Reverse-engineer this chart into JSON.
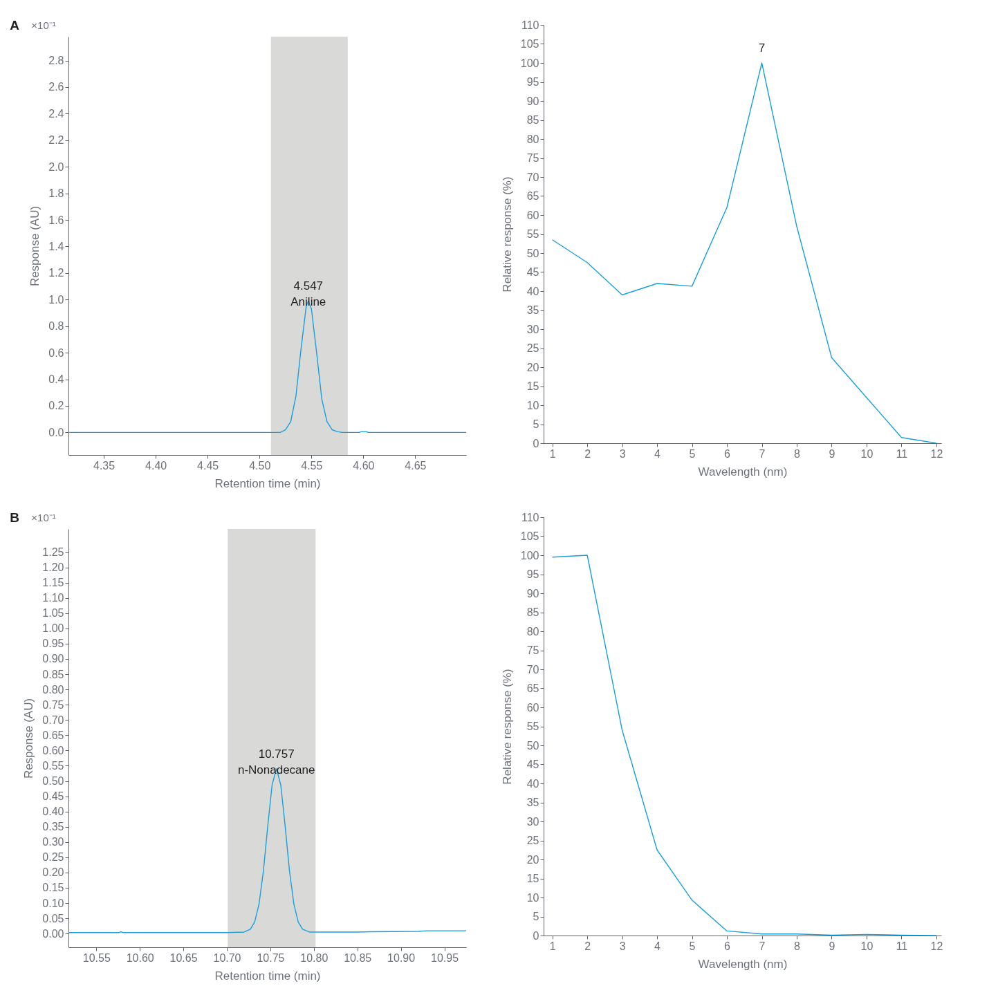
{
  "chart_data": [
    {
      "type": "line",
      "xlabel": "Retention time (min)",
      "ylabel": "Response (AU)",
      "xlim": [
        4.316,
        4.699
      ],
      "ylim": [
        -0.17,
        2.98
      ],
      "xticks": [
        4.35,
        {
          "value": 4.4,
          "label": "4.40"
        },
        4.45,
        {
          "value": 4.5,
          "label": "4.50"
        },
        4.55,
        {
          "value": 4.6,
          "label": "4.60"
        },
        4.65
      ],
      "yticks": [
        {
          "value": 0,
          "label": "0.0"
        },
        0.2,
        0.4,
        0.6,
        0.8,
        {
          "value": 1,
          "label": "1.0"
        },
        1.2,
        1.4,
        1.6,
        1.8,
        {
          "value": 2,
          "label": "2.0"
        },
        2.2,
        2.4,
        2.6,
        2.8
      ],
      "grid": false,
      "bands": [
        {
          "axis": "x",
          "from": 4.511,
          "to": 4.585,
          "color": "#d9d9d8"
        }
      ],
      "annotations": [
        "A",
        "×10⁻¹",
        {
          "text": "4.547\nAniline",
          "x": 4.547,
          "y": 0.99
        }
      ],
      "series": [
        {
          "color": "#1a9fdc",
          "x": [
            4.316,
            4.52,
            4.525,
            4.53,
            4.535,
            4.54,
            4.545,
            4.547,
            4.55,
            4.555,
            4.56,
            4.565,
            4.57,
            4.575,
            4.58,
            4.596,
            4.598,
            4.603,
            4.605,
            4.699
          ],
          "values": [
            0,
            0,
            0.02,
            0.08,
            0.27,
            0.63,
            0.95,
            0.99,
            0.93,
            0.6,
            0.25,
            0.08,
            0.02,
            0.005,
            0,
            0,
            0.005,
            0.005,
            0,
            0
          ]
        }
      ]
    },
    {
      "type": "line",
      "xlabel": "Wavelength (nm)",
      "ylabel": "Relative response (%)",
      "xlim": [
        0.75,
        12.14
      ],
      "ylim": [
        0,
        110
      ],
      "xticks": [
        1,
        2,
        3,
        4,
        5,
        6,
        7,
        8,
        9,
        10,
        11,
        12
      ],
      "yticks": [
        0,
        5,
        10,
        15,
        20,
        25,
        30,
        35,
        40,
        45,
        50,
        55,
        60,
        65,
        70,
        75,
        80,
        85,
        90,
        95,
        100,
        105,
        110
      ],
      "grid": false,
      "annotations": [
        {
          "text": "7",
          "x": 7,
          "y": 100
        }
      ],
      "series": [
        {
          "color": "#1a9fdc",
          "x": [
            1,
            2,
            3,
            4,
            5,
            6,
            7,
            8,
            9,
            10,
            11,
            12
          ],
          "values": [
            53.5,
            47.5,
            39,
            42,
            41.3,
            62,
            100,
            57,
            22.5,
            12,
            1.5,
            0
          ]
        }
      ]
    },
    {
      "type": "line",
      "xlabel": "Retention time (min)",
      "ylabel": "Response (AU)",
      "xlim": [
        10.518,
        10.975
      ],
      "ylim": [
        -0.045,
        1.326
      ],
      "xticks": [
        10.55,
        {
          "value": 10.6,
          "label": "10.60"
        },
        10.65,
        {
          "value": 10.7,
          "label": "10.70"
        },
        10.75,
        {
          "value": 10.8,
          "label": "10.80"
        },
        10.85,
        {
          "value": 10.9,
          "label": "10.90"
        },
        10.95
      ],
      "yticks": [
        {
          "value": 0,
          "label": "0.00"
        },
        0.05,
        {
          "value": 0.1,
          "label": "0.10"
        },
        0.15,
        {
          "value": 0.2,
          "label": "0.20"
        },
        0.25,
        {
          "value": 0.3,
          "label": "0.30"
        },
        0.35,
        {
          "value": 0.4,
          "label": "0.40"
        },
        0.45,
        {
          "value": 0.5,
          "label": "0.50"
        },
        0.55,
        {
          "value": 0.6,
          "label": "0.60"
        },
        0.65,
        {
          "value": 0.7,
          "label": "0.70"
        },
        0.75,
        {
          "value": 0.8,
          "label": "0.80"
        },
        0.85,
        {
          "value": 0.9,
          "label": "0.90"
        },
        0.95,
        {
          "value": 1,
          "label": "1.00"
        },
        1.05,
        {
          "value": 1.1,
          "label": "1.10"
        },
        1.15,
        {
          "value": 1.2,
          "label": "1.20"
        },
        1.25
      ],
      "grid": false,
      "bands": [
        {
          "axis": "x",
          "from": 10.701,
          "to": 10.802,
          "color": "#d9d9d8"
        }
      ],
      "annotations": [
        "B",
        "×10⁻¹",
        {
          "text": "10.757\nn-Nonadecane",
          "x": 10.757,
          "y": 0.54
        }
      ],
      "series": [
        {
          "color": "#1a9fdc",
          "x": [
            10.518,
            10.576,
            10.578,
            10.581,
            10.7,
            10.72,
            10.727,
            10.732,
            10.737,
            10.742,
            10.747,
            10.752,
            10.757,
            10.762,
            10.767,
            10.772,
            10.777,
            10.782,
            10.787,
            10.795,
            10.85,
            10.865,
            10.92,
            10.93,
            10.975
          ],
          "values": [
            0.003,
            0.003,
            0.006,
            0.003,
            0.003,
            0.005,
            0.014,
            0.038,
            0.097,
            0.205,
            0.352,
            0.487,
            0.54,
            0.487,
            0.352,
            0.205,
            0.097,
            0.038,
            0.014,
            0.005,
            0.005,
            0.006,
            0.007,
            0.009,
            0.009
          ]
        }
      ]
    },
    {
      "type": "line",
      "xlabel": "Wavelength (nm)",
      "ylabel": "Relative response (%)",
      "xlim": [
        0.75,
        12.14
      ],
      "ylim": [
        0,
        110
      ],
      "xticks": [
        1,
        2,
        3,
        4,
        5,
        6,
        7,
        8,
        9,
        10,
        11,
        12
      ],
      "yticks": [
        0,
        5,
        10,
        15,
        20,
        25,
        30,
        35,
        40,
        45,
        50,
        55,
        60,
        65,
        70,
        75,
        80,
        85,
        90,
        95,
        100,
        105,
        110
      ],
      "grid": false,
      "series": [
        {
          "color": "#1a9fdc",
          "x": [
            1,
            2,
            3,
            4,
            5,
            6,
            7,
            8,
            9,
            10,
            11,
            12
          ],
          "values": [
            99.5,
            100,
            54,
            22.5,
            9.3,
            1.2,
            0.4,
            0.4,
            0.1,
            0.3,
            0.1,
            0
          ]
        }
      ]
    }
  ]
}
